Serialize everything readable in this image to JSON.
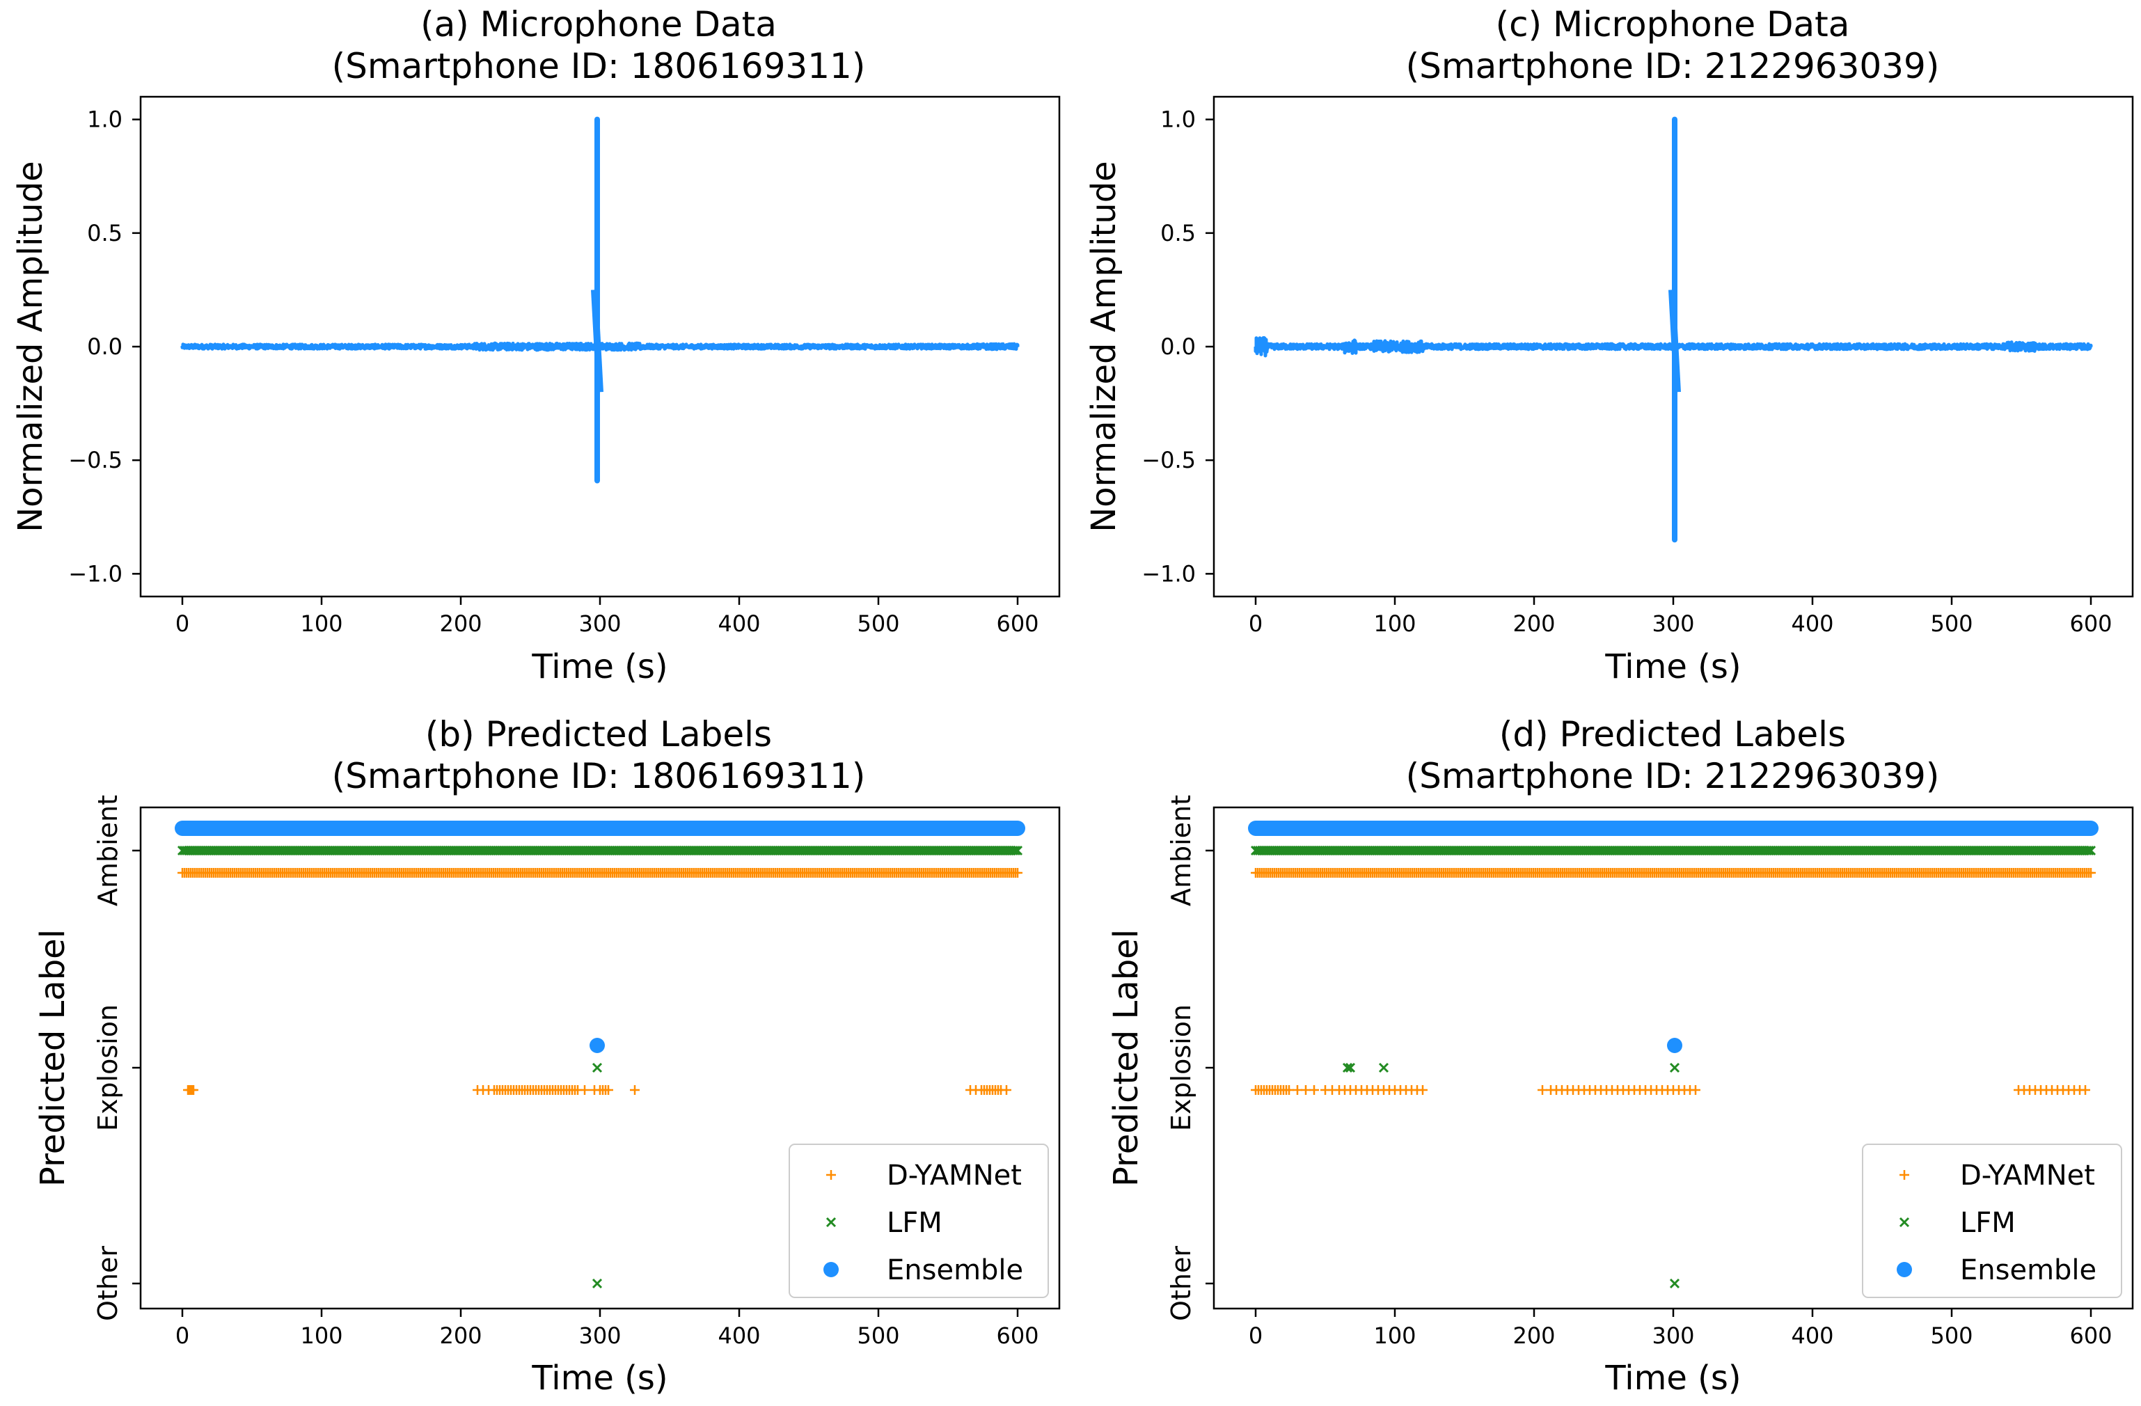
{
  "colors": {
    "ensemble": "#1E90FF",
    "lfm": "#228B22",
    "dyamnet": "#FF8C00",
    "axes": "#000000"
  },
  "chart_data": [
    {
      "id": "a",
      "type": "line",
      "title_line1": "(a) Microphone Data",
      "title_line2": "(Smartphone ID: 1806169311)",
      "xlabel": "Time (s)",
      "ylabel": "Normalized Amplitude",
      "xlim": [
        -30,
        630
      ],
      "ylim": [
        -1.1,
        1.1
      ],
      "xticks": [
        0,
        100,
        200,
        300,
        400,
        500,
        600
      ],
      "yticks": [
        1.0,
        0.5,
        0.0,
        -0.5,
        -1.0
      ],
      "ytick_labels": [
        "1.0",
        "0.5",
        "0.0",
        "−0.5",
        "−1.0"
      ],
      "x_range": [
        0,
        600
      ],
      "baseline_noise": 0.01,
      "noisy_segments": [
        [
          210,
          330,
          0.015
        ],
        [
          570,
          600,
          0.012
        ]
      ],
      "spike": {
        "x": 298,
        "max": 1.0,
        "min": -0.59
      }
    },
    {
      "id": "c",
      "type": "line",
      "title_line1": "(c) Microphone Data",
      "title_line2": "(Smartphone ID: 2122963039)",
      "xlabel": "Time (s)",
      "ylabel": "Normalized Amplitude",
      "xlim": [
        -30,
        630
      ],
      "ylim": [
        -1.1,
        1.1
      ],
      "xticks": [
        0,
        100,
        200,
        300,
        400,
        500,
        600
      ],
      "yticks": [
        1.0,
        0.5,
        0.0,
        -0.5,
        -1.0
      ],
      "ytick_labels": [
        "1.0",
        "0.5",
        "0.0",
        "−0.5",
        "−1.0"
      ],
      "x_range": [
        0,
        600
      ],
      "baseline_noise": 0.012,
      "noisy_segments": [
        [
          0,
          8,
          0.04
        ],
        [
          64,
          72,
          0.03
        ],
        [
          85,
          120,
          0.025
        ],
        [
          540,
          560,
          0.02
        ]
      ],
      "spike": {
        "x": 301,
        "max": 1.0,
        "min": -0.85
      }
    },
    {
      "id": "b",
      "type": "scatter",
      "title_line1": "(b) Predicted Labels",
      "title_line2": "(Smartphone ID: 1806169311)",
      "xlabel": "Time (s)",
      "ylabel": "Predicted Label",
      "xlim": [
        -30,
        630
      ],
      "xticks": [
        0,
        100,
        200,
        300,
        400,
        500,
        600
      ],
      "categories": [
        "Other",
        "Explosion",
        "Ambient"
      ],
      "legend_position": "lower-right",
      "series": [
        {
          "name": "D-YAMNet",
          "marker": "plus",
          "ambient": {
            "from": 0,
            "to": 600,
            "step": 1.5
          },
          "explosion": [
            4,
            5,
            6,
            7,
            8,
            212,
            216,
            220,
            224,
            226,
            228,
            230,
            232,
            234,
            236,
            238,
            240,
            242,
            244,
            246,
            248,
            250,
            252,
            254,
            256,
            258,
            260,
            262,
            264,
            266,
            268,
            270,
            272,
            274,
            276,
            278,
            280,
            282,
            284,
            289,
            296,
            300,
            302,
            304,
            306,
            325,
            566,
            570,
            574,
            576,
            578,
            580,
            582,
            584,
            586,
            588,
            592
          ],
          "other": []
        },
        {
          "name": "LFM",
          "marker": "x",
          "ambient": {
            "from": 0,
            "to": 600,
            "step": 1.5
          },
          "explosion": [
            298
          ],
          "other": [
            298
          ]
        },
        {
          "name": "Ensemble",
          "marker": "dot",
          "ambient": {
            "from": 0,
            "to": 600,
            "step": 1.5
          },
          "explosion": [
            298
          ],
          "other": []
        }
      ]
    },
    {
      "id": "d",
      "type": "scatter",
      "title_line1": "(d) Predicted Labels",
      "title_line2": "(Smartphone ID: 2122963039)",
      "xlabel": "Time (s)",
      "ylabel": "Predicted Label",
      "xlim": [
        -30,
        630
      ],
      "xticks": [
        0,
        100,
        200,
        300,
        400,
        500,
        600
      ],
      "categories": [
        "Other",
        "Explosion",
        "Ambient"
      ],
      "legend_position": "lower-right",
      "series": [
        {
          "name": "D-YAMNet",
          "marker": "plus",
          "ambient": {
            "from": 0,
            "to": 600,
            "step": 1.5
          },
          "explosion": [
            0,
            2,
            4,
            6,
            8,
            10,
            12,
            14,
            16,
            18,
            20,
            22,
            24,
            30,
            36,
            42,
            50,
            55,
            60,
            64,
            68,
            72,
            76,
            80,
            84,
            88,
            92,
            96,
            100,
            104,
            108,
            112,
            116,
            120,
            206,
            212,
            216,
            220,
            224,
            228,
            232,
            236,
            240,
            244,
            248,
            252,
            256,
            260,
            264,
            268,
            272,
            276,
            280,
            284,
            288,
            292,
            296,
            300,
            304,
            308,
            312,
            316,
            548,
            552,
            556,
            560,
            564,
            568,
            572,
            576,
            580,
            584,
            588,
            592,
            596
          ],
          "other": []
        },
        {
          "name": "LFM",
          "marker": "x",
          "ambient": {
            "from": 0,
            "to": 600,
            "step": 1.5
          },
          "explosion": [
            66,
            68,
            92,
            301
          ],
          "other": [
            301
          ]
        },
        {
          "name": "Ensemble",
          "marker": "dot",
          "ambient": {
            "from": 0,
            "to": 600,
            "step": 1.5
          },
          "explosion": [
            301
          ],
          "other": []
        }
      ]
    }
  ]
}
